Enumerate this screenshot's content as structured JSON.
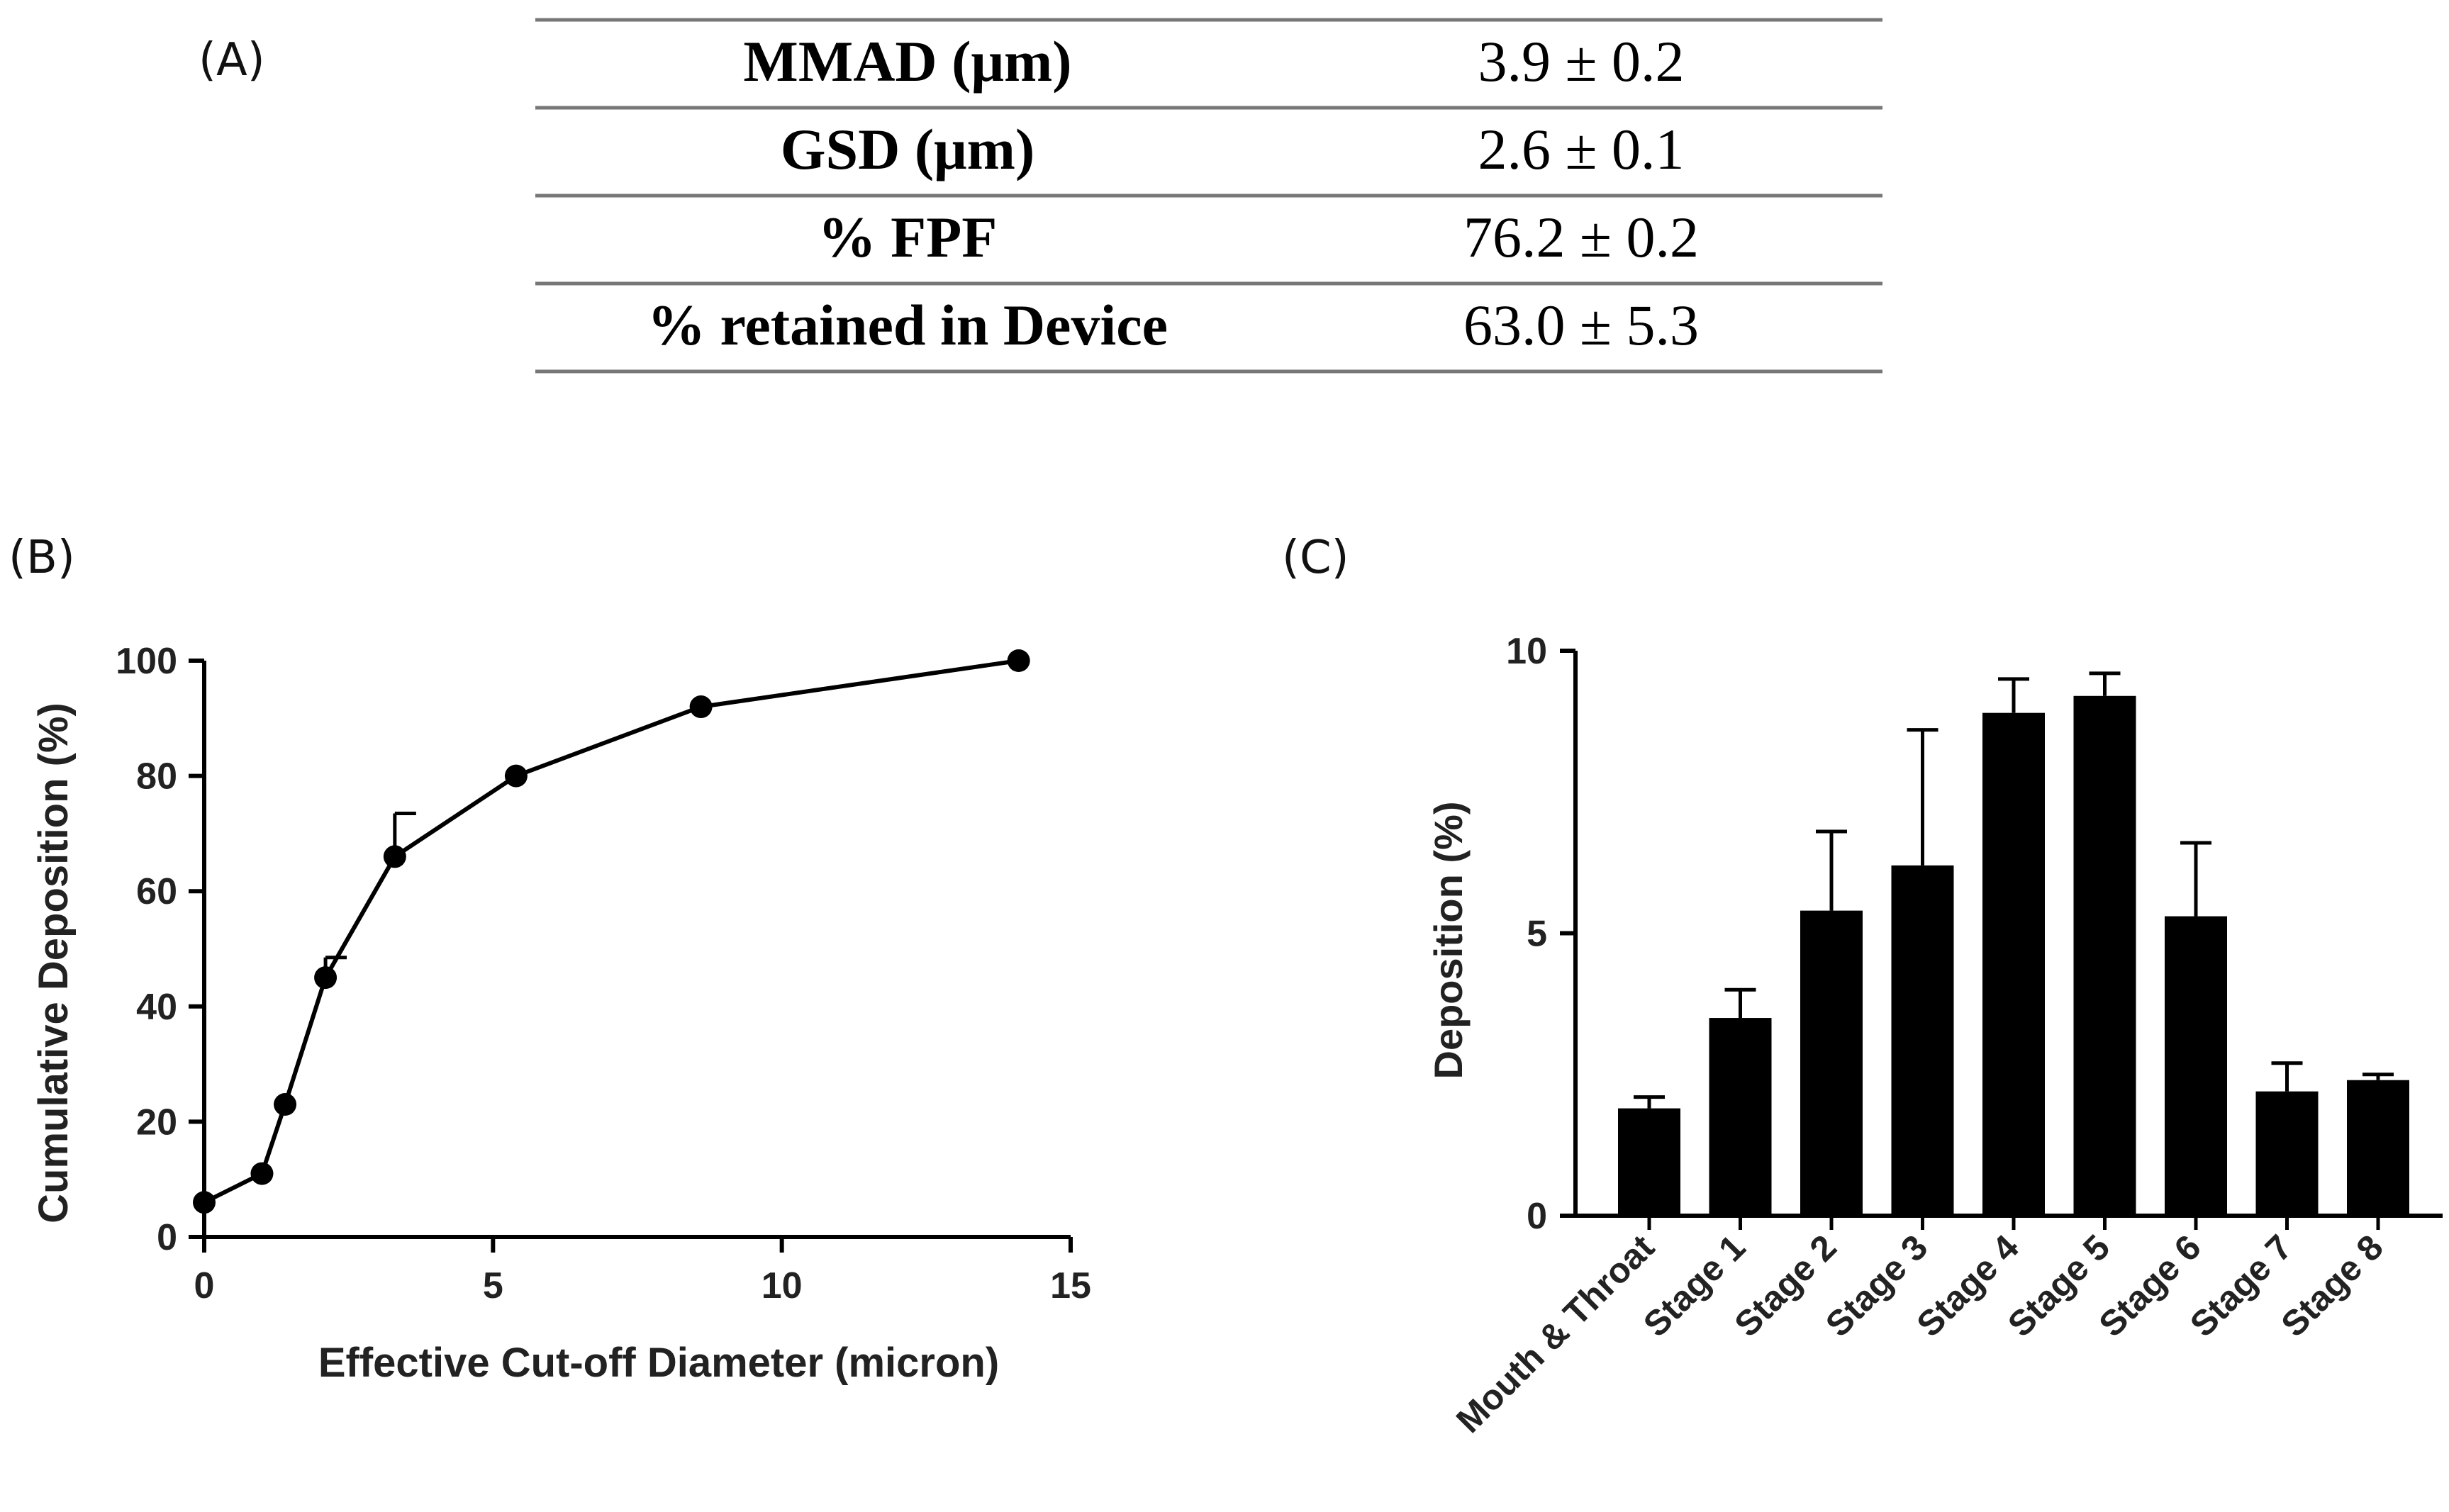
{
  "panels": {
    "a": "(A)",
    "b": "(B)",
    "c": "(C)"
  },
  "table": {
    "rows": [
      {
        "label": "MMAD (μm)",
        "value": "3.9 ± 0.2"
      },
      {
        "label": "GSD (μm)",
        "value": "2.6 ± 0.1"
      },
      {
        "label": "% FPF",
        "value": "76.2 ± 0.2"
      },
      {
        "label": "% retained in Device",
        "value": "63.0 ± 5.3"
      }
    ]
  },
  "chart_data": [
    {
      "type": "line",
      "panel": "B",
      "title": "",
      "xlabel": "Effective Cut-off Diameter (micron)",
      "ylabel": "Cumulative Deposition (%)",
      "xlim": [
        0,
        15
      ],
      "ylim": [
        0,
        100
      ],
      "xticks": [
        0,
        5,
        10,
        15
      ],
      "yticks": [
        0,
        20,
        40,
        60,
        80,
        100
      ],
      "x": [
        0,
        1.0,
        1.4,
        2.1,
        3.3,
        5.4,
        8.6,
        14.1
      ],
      "y": [
        6,
        11,
        23,
        45,
        66,
        80,
        92,
        100
      ],
      "error_plus": [
        0,
        0,
        0,
        3.5,
        7.5,
        0,
        0,
        0
      ],
      "grid": false
    },
    {
      "type": "bar",
      "panel": "C",
      "title": "",
      "xlabel": "",
      "ylabel": "Deposition (%)",
      "ylim": [
        0,
        10
      ],
      "yticks": [
        0,
        5,
        10
      ],
      "categories": [
        "Mouth & Throat",
        "Stage 1",
        "Stage 2",
        "Stage 3",
        "Stage 4",
        "Stage 5",
        "Stage 6",
        "Stage 7",
        "Stage 8"
      ],
      "values": [
        1.9,
        3.5,
        5.4,
        6.2,
        8.9,
        9.2,
        5.3,
        2.2,
        2.4
      ],
      "error_plus": [
        0.2,
        0.5,
        1.4,
        2.4,
        0.6,
        0.4,
        1.3,
        0.5,
        0.1
      ],
      "grid": false
    }
  ]
}
